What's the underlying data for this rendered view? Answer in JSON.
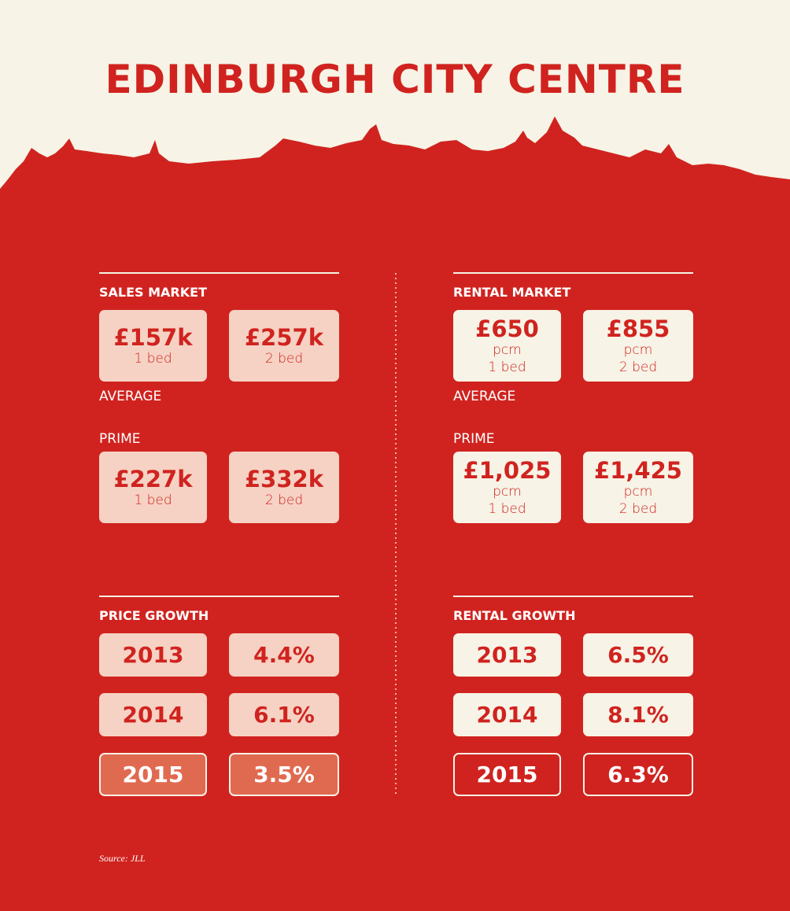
{
  "title": "EDINBURGH CITY CENTRE",
  "sales_market": {
    "heading": "SALES MARKET",
    "average": {
      "label": "AVERAGE",
      "boxes": [
        {
          "value": "£157k",
          "lines": [
            "1 bed"
          ]
        },
        {
          "value": "£257k",
          "lines": [
            "2 bed"
          ]
        }
      ]
    },
    "prime": {
      "label": "PRIME",
      "boxes": [
        {
          "value": "£227k",
          "lines": [
            "1 bed"
          ]
        },
        {
          "value": "£332k",
          "lines": [
            "2 bed"
          ]
        }
      ]
    }
  },
  "rental_market": {
    "heading": "RENTAL MARKET",
    "average": {
      "label": "AVERAGE",
      "boxes": [
        {
          "value": "£650",
          "lines": [
            "pcm",
            "1 bed"
          ]
        },
        {
          "value": "£855",
          "lines": [
            "pcm",
            "2 bed"
          ]
        }
      ]
    },
    "prime": {
      "label": "PRIME",
      "boxes": [
        {
          "value": "£1,025",
          "lines": [
            "pcm",
            "1 bed"
          ]
        },
        {
          "value": "£1,425",
          "lines": [
            "pcm",
            "2 bed"
          ]
        }
      ]
    }
  },
  "price_growth": {
    "heading": "PRICE GROWTH",
    "rows": [
      [
        "2013",
        "4.4%"
      ],
      [
        "2014",
        "6.1%"
      ],
      [
        "2015",
        "3.5%"
      ]
    ]
  },
  "rental_growth": {
    "heading": "RENTAL GROWTH",
    "rows": [
      [
        "2013",
        "6.5%"
      ],
      [
        "2014",
        "8.1%"
      ],
      [
        "2015",
        "6.3%"
      ]
    ]
  },
  "source": "Source: JLL"
}
